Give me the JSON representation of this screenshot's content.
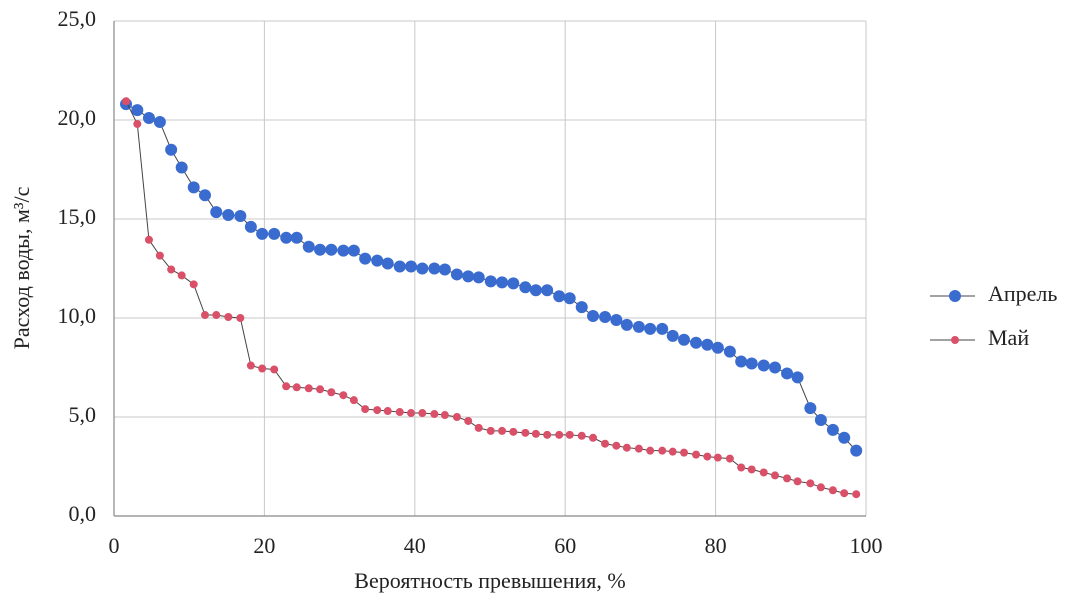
{
  "chart_data": {
    "type": "line",
    "x_label": "Вероятность превышения, %",
    "y_label": "Расход воды, м³/с",
    "x": [
      1.6,
      3.1,
      4.65,
      6.1,
      7.6,
      9.0,
      10.6,
      12.1,
      13.6,
      15.2,
      16.8,
      18.2,
      19.7,
      21.3,
      22.9,
      24.3,
      25.9,
      27.4,
      28.9,
      30.5,
      31.9,
      33.4,
      35.0,
      36.4,
      38.0,
      39.5,
      41.0,
      42.6,
      44.0,
      45.6,
      47.1,
      48.5,
      50.1,
      51.6,
      53.1,
      54.7,
      56.1,
      57.6,
      59.2,
      60.6,
      62.2,
      63.7,
      65.3,
      66.8,
      68.2,
      69.8,
      71.3,
      72.9,
      74.3,
      75.8,
      77.4,
      78.9,
      80.3,
      81.9,
      83.4,
      84.8,
      86.4,
      87.9,
      89.5,
      90.9,
      92.6,
      94.0,
      95.6,
      97.1,
      98.7
    ],
    "series": [
      {
        "name": "Апрель",
        "color": "#3a6cd0",
        "values": [
          20.8,
          20.5,
          20.1,
          19.9,
          18.5,
          17.6,
          16.6,
          16.2,
          15.35,
          15.2,
          15.15,
          14.6,
          14.25,
          14.25,
          14.05,
          14.05,
          13.6,
          13.45,
          13.45,
          13.4,
          13.4,
          13.0,
          12.9,
          12.75,
          12.6,
          12.6,
          12.5,
          12.5,
          12.45,
          12.2,
          12.1,
          12.05,
          11.85,
          11.8,
          11.75,
          11.55,
          11.4,
          11.4,
          11.1,
          11.0,
          10.55,
          10.1,
          10.05,
          9.9,
          9.65,
          9.55,
          9.45,
          9.45,
          9.1,
          8.9,
          8.75,
          8.65,
          8.5,
          8.3,
          7.8,
          7.7,
          7.6,
          7.5,
          7.2,
          7.0,
          5.45,
          4.85,
          4.35,
          3.95,
          3.3
        ]
      },
      {
        "name": "Май",
        "color": "#d95068",
        "values": [
          20.95,
          19.8,
          13.95,
          13.15,
          12.45,
          12.15,
          11.7,
          10.15,
          10.15,
          10.05,
          10.0,
          7.6,
          7.45,
          7.4,
          6.55,
          6.5,
          6.45,
          6.4,
          6.25,
          6.1,
          5.85,
          5.4,
          5.35,
          5.3,
          5.25,
          5.2,
          5.2,
          5.15,
          5.1,
          5.0,
          4.8,
          4.45,
          4.3,
          4.3,
          4.25,
          4.2,
          4.15,
          4.1,
          4.1,
          4.1,
          4.05,
          3.95,
          3.65,
          3.55,
          3.45,
          3.4,
          3.3,
          3.3,
          3.25,
          3.2,
          3.1,
          3.0,
          2.95,
          2.9,
          2.45,
          2.35,
          2.2,
          2.05,
          1.9,
          1.75,
          1.65,
          1.45,
          1.3,
          1.15,
          1.1
        ]
      }
    ],
    "xlim": [
      0,
      100
    ],
    "xticks": [
      0,
      20,
      40,
      60,
      80,
      100
    ],
    "ylim": [
      0,
      25
    ],
    "yticks": [
      {
        "value": 0,
        "label": "0,0"
      },
      {
        "value": 5,
        "label": "5,0"
      },
      {
        "value": 10,
        "label": "10,0"
      },
      {
        "value": 15,
        "label": "15,0"
      },
      {
        "value": 20,
        "label": "20,0"
      },
      {
        "value": 25,
        "label": "25,0"
      }
    ],
    "grid": true,
    "legend": "right"
  }
}
